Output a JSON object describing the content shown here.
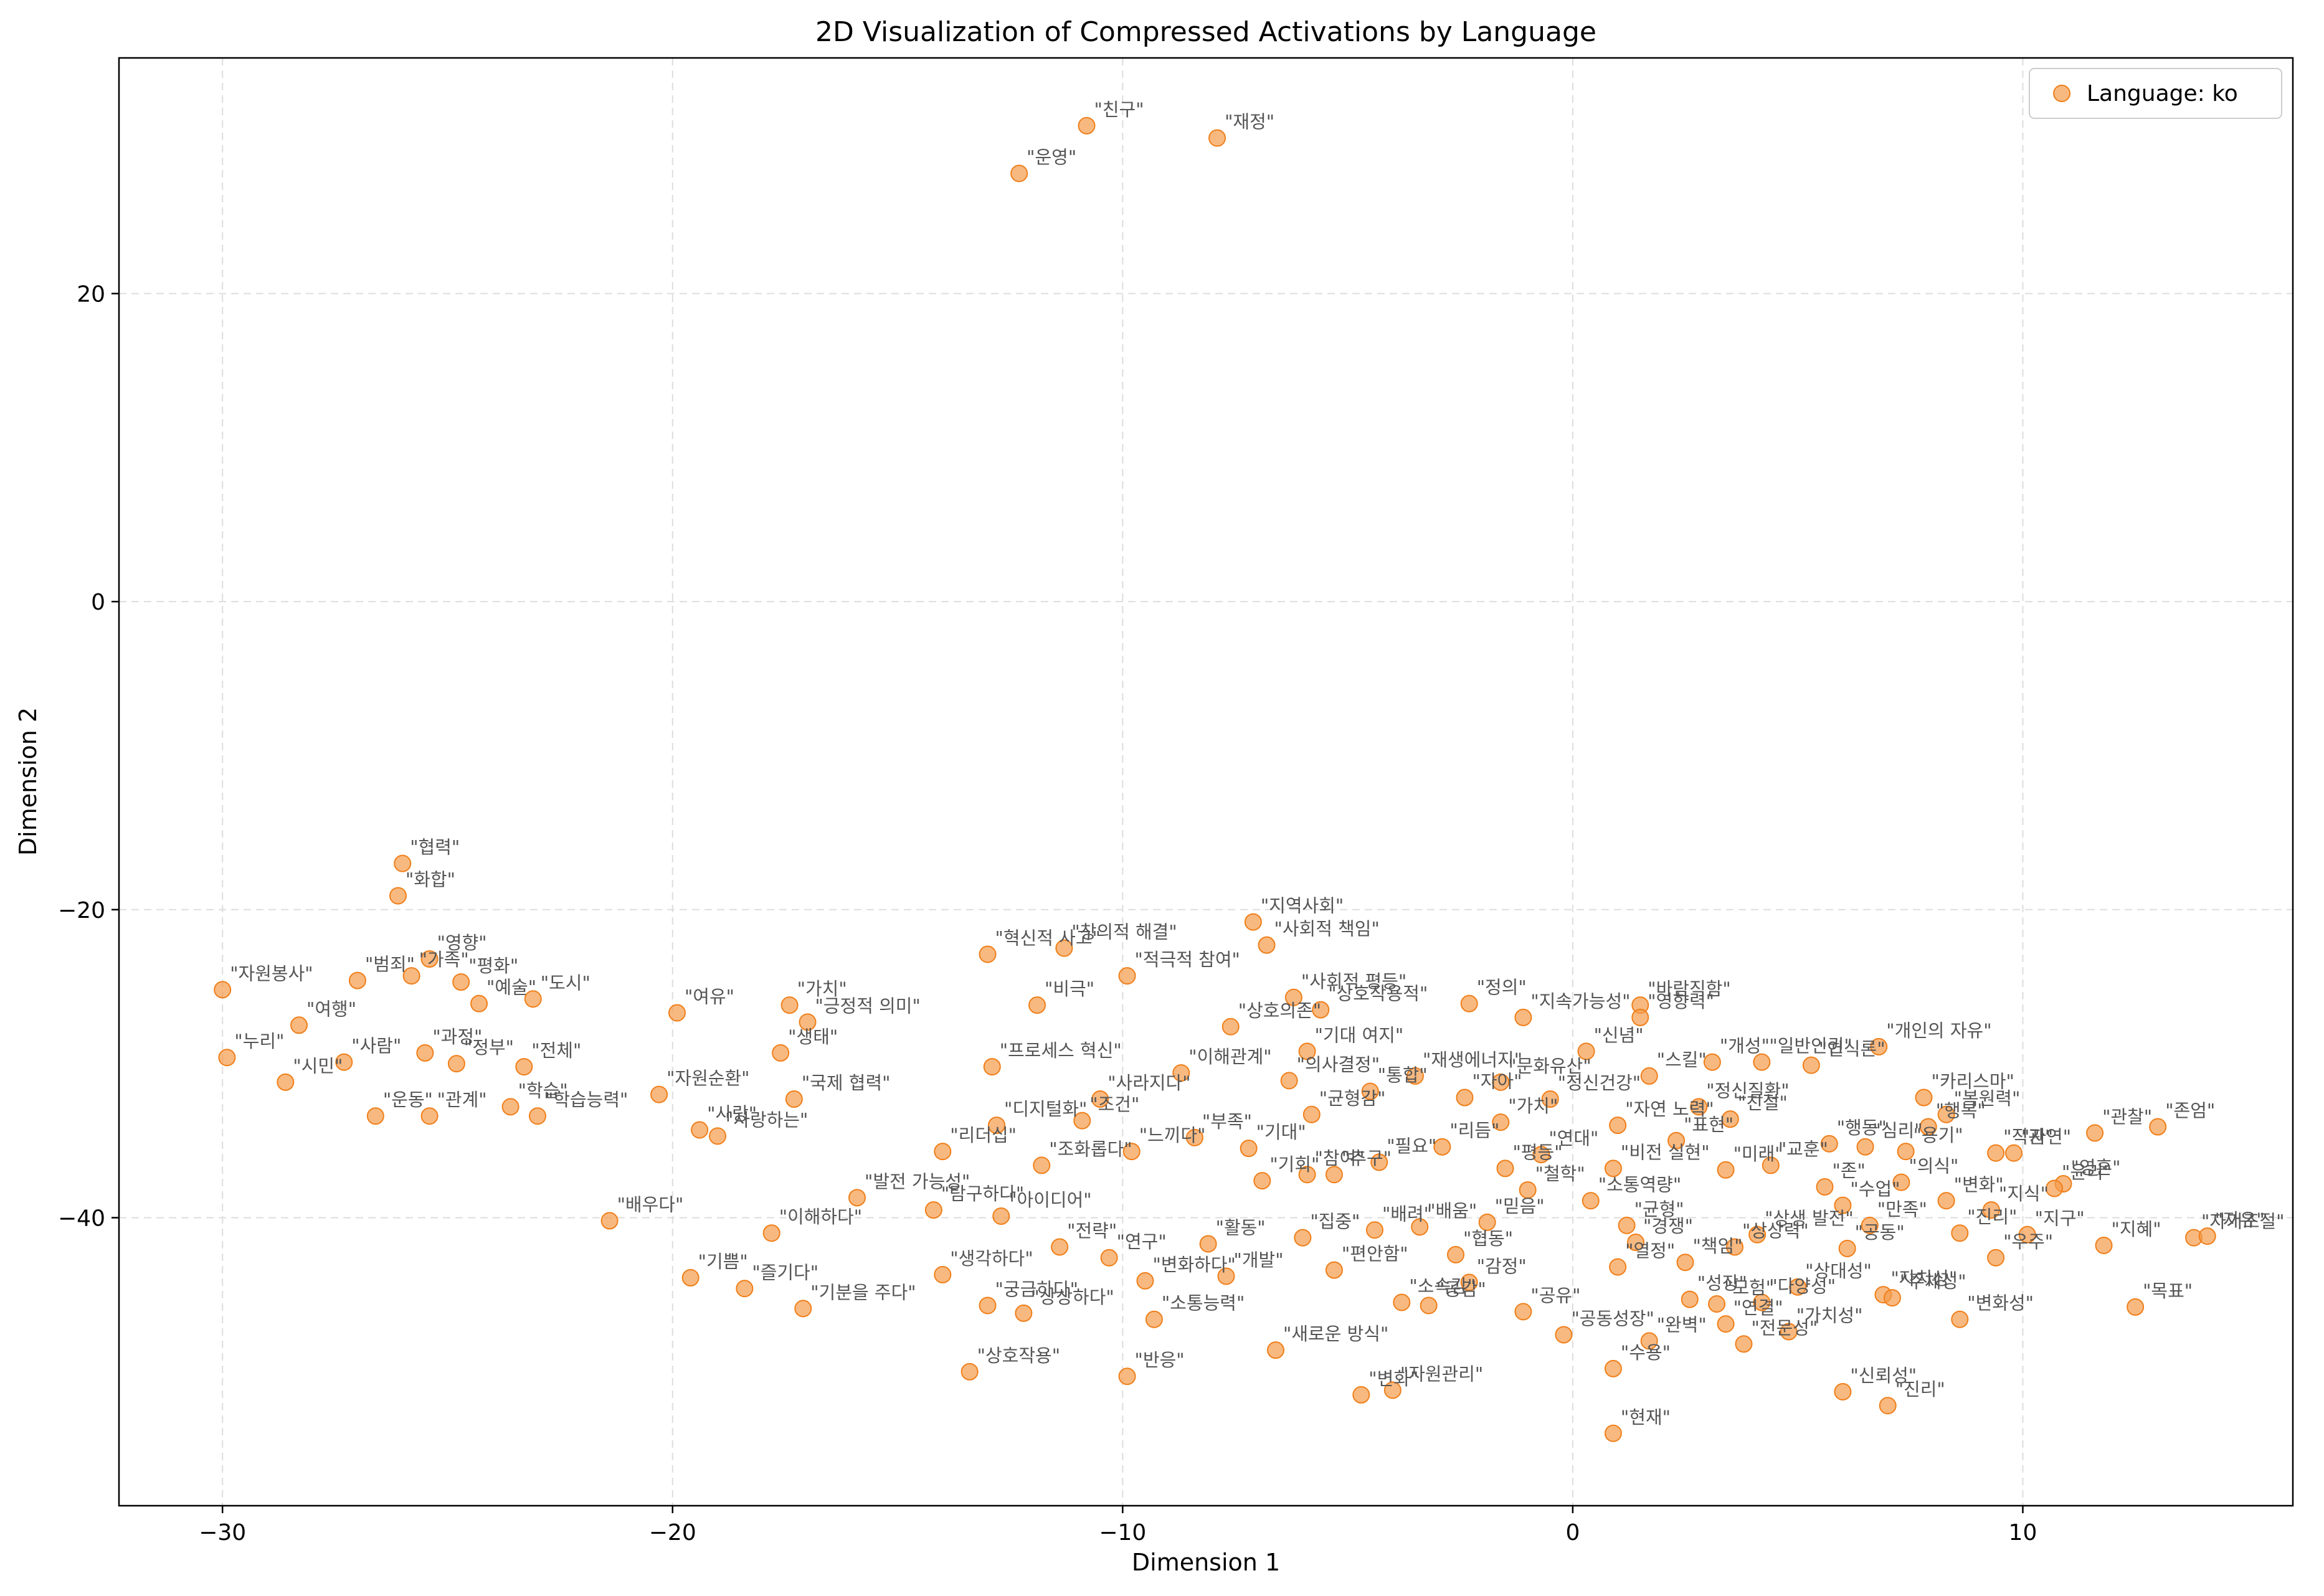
{
  "chart_data": {
    "type": "scatter",
    "title": "2D Visualization of Compressed Activations by Language",
    "xlabel": "Dimension 1",
    "ylabel": "Dimension 2",
    "xlim": [
      -32.3,
      16.0
    ],
    "ylim": [
      -58.7,
      35.3
    ],
    "xticks": [
      -30,
      -20,
      -10,
      0,
      10
    ],
    "xtick_labels": [
      "−30",
      "−20",
      "−10",
      "0",
      "10"
    ],
    "yticks": [
      20,
      0,
      -20,
      -40
    ],
    "ytick_labels": [
      "20",
      "0",
      "−20",
      "−40"
    ],
    "grid": true,
    "legend_position": "top-right",
    "colors": {
      "marker": "#f39b4a",
      "marker_edge": "#f07f1a",
      "text": "#555555"
    },
    "series": [
      {
        "name": "Language: ko",
        "points": [
          {
            "x": -10.8,
            "y": 30.9,
            "label": "\"친구\""
          },
          {
            "x": -7.9,
            "y": 30.1,
            "label": "\"재정\""
          },
          {
            "x": -12.3,
            "y": 27.8,
            "label": "\"운영\""
          },
          {
            "x": -26.0,
            "y": -17.0,
            "label": "\"협력\""
          },
          {
            "x": -26.1,
            "y": -19.1,
            "label": "\"화합\""
          },
          {
            "x": -30.0,
            "y": -25.2,
            "label": "\"자원봉사\""
          },
          {
            "x": -27.0,
            "y": -24.6,
            "label": "\"범죄\""
          },
          {
            "x": -25.4,
            "y": -23.2,
            "label": "\"영향\""
          },
          {
            "x": -25.8,
            "y": -24.3,
            "label": "\"가족\""
          },
          {
            "x": -24.7,
            "y": -24.7,
            "label": "\"평화\""
          },
          {
            "x": -28.3,
            "y": -27.5,
            "label": "\"여행\""
          },
          {
            "x": -29.9,
            "y": -29.6,
            "label": "\"누리\""
          },
          {
            "x": -27.3,
            "y": -29.9,
            "label": "\"사람\""
          },
          {
            "x": -28.6,
            "y": -31.2,
            "label": "\"시민\""
          },
          {
            "x": -25.5,
            "y": -29.3,
            "label": "\"과정\""
          },
          {
            "x": -24.8,
            "y": -30.0,
            "label": "\"정부\""
          },
          {
            "x": -23.3,
            "y": -30.2,
            "label": "\"전체\""
          },
          {
            "x": -26.6,
            "y": -33.4,
            "label": "\"운동\""
          },
          {
            "x": -25.4,
            "y": -33.4,
            "label": "\"관계\""
          },
          {
            "x": -23.0,
            "y": -33.4,
            "label": "\"학습능력\""
          },
          {
            "x": -23.6,
            "y": -32.8,
            "label": "\"학습\""
          },
          {
            "x": -23.1,
            "y": -25.8,
            "label": "\"도시\""
          },
          {
            "x": -24.3,
            "y": -26.1,
            "label": "\"예술\""
          },
          {
            "x": -19.9,
            "y": -26.7,
            "label": "\"여유\""
          },
          {
            "x": -17.4,
            "y": -26.2,
            "label": "\"가치\""
          },
          {
            "x": -17.6,
            "y": -29.3,
            "label": "\"생태\""
          },
          {
            "x": -17.0,
            "y": -27.3,
            "label": "\"긍정적 의미\""
          },
          {
            "x": -20.3,
            "y": -32.0,
            "label": "\"자원순환\""
          },
          {
            "x": -17.3,
            "y": -32.3,
            "label": "\"국제 협력\""
          },
          {
            "x": -19.4,
            "y": -34.3,
            "label": "\"사랑\""
          },
          {
            "x": -19.0,
            "y": -34.7,
            "label": "\"사랑하는\""
          },
          {
            "x": -21.4,
            "y": -40.2,
            "label": "\"배우다\""
          },
          {
            "x": -19.6,
            "y": -43.9,
            "label": "\"기쁨\""
          },
          {
            "x": -18.4,
            "y": -44.6,
            "label": "\"즐기다\""
          },
          {
            "x": -17.1,
            "y": -45.9,
            "label": "\"기분을 주다\""
          },
          {
            "x": -13.4,
            "y": -50.0,
            "label": "\"상호작용\""
          },
          {
            "x": -12.2,
            "y": -46.2,
            "label": "\"상상하다\""
          },
          {
            "x": -9.9,
            "y": -50.3,
            "label": "\"반응\""
          },
          {
            "x": -13.0,
            "y": -22.9,
            "label": "\"혁신적 사고\""
          },
          {
            "x": -11.3,
            "y": -22.5,
            "label": "\"창의적 해결\""
          },
          {
            "x": -11.9,
            "y": -26.2,
            "label": "\"비극\""
          },
          {
            "x": -7.1,
            "y": -20.8,
            "label": "\"지역사회\""
          },
          {
            "x": -6.8,
            "y": -22.3,
            "label": "\"사회적 책임\""
          },
          {
            "x": -9.9,
            "y": -24.3,
            "label": "\"적극적 참여\""
          },
          {
            "x": -6.2,
            "y": -25.7,
            "label": "\"사회적 평등\""
          },
          {
            "x": -12.9,
            "y": -30.2,
            "label": "\"프로세스 혁신\""
          },
          {
            "x": -10.5,
            "y": -32.3,
            "label": "\"사라지다\""
          },
          {
            "x": -12.8,
            "y": -34.0,
            "label": "\"디지털화\""
          },
          {
            "x": -7.6,
            "y": -27.6,
            "label": "\"상호의존\""
          },
          {
            "x": -5.9,
            "y": -29.2,
            "label": "\"기대 여지\""
          },
          {
            "x": -14.0,
            "y": -35.7,
            "label": "\"리더십\""
          },
          {
            "x": -11.8,
            "y": -36.6,
            "label": "\"조화롭다\""
          },
          {
            "x": -9.8,
            "y": -35.7,
            "label": "\"느끼다\""
          },
          {
            "x": -6.9,
            "y": -37.6,
            "label": "\"기회\""
          },
          {
            "x": -5.3,
            "y": -37.2,
            "label": "\"추구\""
          },
          {
            "x": -15.9,
            "y": -38.7,
            "label": "\"발전 가능성\""
          },
          {
            "x": -14.2,
            "y": -39.5,
            "label": "\"탐구하다\""
          },
          {
            "x": -12.7,
            "y": -39.9,
            "label": "\"아이디어\""
          },
          {
            "x": -17.8,
            "y": -41.0,
            "label": "\"이해하다\""
          },
          {
            "x": -14.0,
            "y": -43.7,
            "label": "\"생각하다\""
          },
          {
            "x": -13.0,
            "y": -45.7,
            "label": "\"궁금하다\""
          },
          {
            "x": -9.3,
            "y": -46.6,
            "label": "\"소통능력\""
          },
          {
            "x": -6.6,
            "y": -48.6,
            "label": "\"새로운 방식\""
          },
          {
            "x": -4.0,
            "y": -51.2,
            "label": "\"자원관리\""
          },
          {
            "x": -4.7,
            "y": -51.5,
            "label": "\"변화\""
          },
          {
            "x": -5.3,
            "y": -43.4,
            "label": "\"편안함\""
          },
          {
            "x": -4.4,
            "y": -40.8,
            "label": "\"배려\""
          },
          {
            "x": -3.4,
            "y": -40.6,
            "label": "\"배움\""
          },
          {
            "x": -1.9,
            "y": -40.3,
            "label": "\"믿음\""
          },
          {
            "x": -2.6,
            "y": -42.4,
            "label": "\"협동\""
          },
          {
            "x": -2.3,
            "y": -44.2,
            "label": "\"감정\""
          },
          {
            "x": -3.2,
            "y": -45.7,
            "label": "\"공감\""
          },
          {
            "x": -3.8,
            "y": -45.5,
            "label": "\"소속감\""
          },
          {
            "x": -1.1,
            "y": -46.1,
            "label": "\"공유\""
          },
          {
            "x": -0.2,
            "y": -47.6,
            "label": "\"공동성장\""
          },
          {
            "x": 0.9,
            "y": -49.8,
            "label": "\"수용\""
          },
          {
            "x": 0.9,
            "y": -54.0,
            "label": "\"현재\""
          },
          {
            "x": 1.7,
            "y": -48.0,
            "label": "\"완벽\""
          },
          {
            "x": 1.0,
            "y": -43.2,
            "label": "\"열정\""
          },
          {
            "x": 1.4,
            "y": -41.6,
            "label": "\"경쟁\""
          },
          {
            "x": 0.4,
            "y": -38.9,
            "label": "\"소통역량\""
          },
          {
            "x": -1.0,
            "y": -38.2,
            "label": "\"철학\""
          },
          {
            "x": -5.6,
            "y": -26.5,
            "label": "\"상호작용적\""
          },
          {
            "x": -2.3,
            "y": -26.1,
            "label": "\"정의\""
          },
          {
            "x": -1.1,
            "y": -27.0,
            "label": "\"지속가능성\""
          },
          {
            "x": 1.5,
            "y": -26.2,
            "label": "\"바람직함\""
          },
          {
            "x": 1.5,
            "y": -27.0,
            "label": "\"영향력\""
          },
          {
            "x": 0.3,
            "y": -29.2,
            "label": "\"신념\""
          },
          {
            "x": 1.7,
            "y": -30.8,
            "label": "\"스킬\""
          },
          {
            "x": -3.5,
            "y": -30.8,
            "label": "\"재생에너지\""
          },
          {
            "x": -1.6,
            "y": -31.2,
            "label": "\"문화유산\""
          },
          {
            "x": -0.5,
            "y": -32.3,
            "label": "\"정신건강\""
          },
          {
            "x": 2.8,
            "y": -32.8,
            "label": "\"정신질환\""
          },
          {
            "x": 3.1,
            "y": -29.9,
            "label": "\"개성\""
          },
          {
            "x": 4.2,
            "y": -29.9,
            "label": "\"일반인권\""
          },
          {
            "x": 5.3,
            "y": -30.1,
            "label": "\"인식론\""
          },
          {
            "x": 6.8,
            "y": -28.9,
            "label": "\"개인의 자유\""
          },
          {
            "x": 7.8,
            "y": -32.2,
            "label": "\"카리스마\""
          },
          {
            "x": 8.3,
            "y": -33.3,
            "label": "\"복원력\""
          },
          {
            "x": 7.9,
            "y": -34.1,
            "label": "\"행복\""
          },
          {
            "x": 11.6,
            "y": -34.5,
            "label": "\"관찰\""
          },
          {
            "x": 13.0,
            "y": -34.1,
            "label": "\"존엄\""
          },
          {
            "x": 9.4,
            "y": -35.8,
            "label": "\"직관\""
          },
          {
            "x": 9.8,
            "y": -35.8,
            "label": "\"자연\""
          },
          {
            "x": 10.9,
            "y": -37.8,
            "label": "\"영혼\""
          },
          {
            "x": 10.7,
            "y": -38.1,
            "label": "\"윤리\""
          },
          {
            "x": 13.8,
            "y": -41.3,
            "label": "\"자기조절\""
          },
          {
            "x": 14.1,
            "y": -41.2,
            "label": "\"자유\""
          },
          {
            "x": 11.8,
            "y": -41.8,
            "label": "\"지혜\""
          },
          {
            "x": 10.1,
            "y": -41.1,
            "label": "\"지구\""
          },
          {
            "x": 9.4,
            "y": -42.6,
            "label": "\"우주\""
          },
          {
            "x": 12.5,
            "y": -45.8,
            "label": "\"목표\""
          },
          {
            "x": 8.6,
            "y": -46.6,
            "label": "\"변화성\""
          },
          {
            "x": 6.9,
            "y": -45.0,
            "label": "\"자치성\""
          },
          {
            "x": 7.1,
            "y": -45.2,
            "label": "\"주체성\""
          },
          {
            "x": 6.0,
            "y": -51.3,
            "label": "\"신뢰성\""
          },
          {
            "x": 7.0,
            "y": -52.2,
            "label": "\"진리\""
          },
          {
            "x": 5.7,
            "y": -35.2,
            "label": "\"행동\""
          },
          {
            "x": 6.5,
            "y": -35.4,
            "label": "\"심리\""
          },
          {
            "x": 7.4,
            "y": -35.7,
            "label": "\"용기\""
          },
          {
            "x": 7.3,
            "y": -37.7,
            "label": "\"의식\""
          },
          {
            "x": 8.3,
            "y": -38.9,
            "label": "\"변화\""
          },
          {
            "x": 8.6,
            "y": -41.0,
            "label": "\"진리\""
          },
          {
            "x": 9.3,
            "y": -39.5,
            "label": "\"지식\""
          },
          {
            "x": 4.4,
            "y": -36.6,
            "label": "\"교훈\""
          },
          {
            "x": 3.4,
            "y": -36.9,
            "label": "\"미래\""
          },
          {
            "x": 5.6,
            "y": -38.0,
            "label": "\"존\""
          },
          {
            "x": 6.0,
            "y": -39.2,
            "label": "\"수업\""
          },
          {
            "x": 4.1,
            "y": -41.1,
            "label": "\"상생 발전\""
          },
          {
            "x": 3.6,
            "y": -41.9,
            "label": "\"상상력\""
          },
          {
            "x": 6.6,
            "y": -40.5,
            "label": "\"만족\""
          },
          {
            "x": 6.1,
            "y": -42.0,
            "label": "\"공동\""
          },
          {
            "x": 5.0,
            "y": -44.5,
            "label": "\"상대성\""
          },
          {
            "x": 4.2,
            "y": -45.5,
            "label": "\"다양성\""
          },
          {
            "x": 3.4,
            "y": -46.9,
            "label": "\"연결\""
          },
          {
            "x": 2.6,
            "y": -45.3,
            "label": "\"성장\""
          },
          {
            "x": 3.8,
            "y": -48.2,
            "label": "\"전문성\""
          },
          {
            "x": 4.8,
            "y": -47.4,
            "label": "\"가치성\""
          },
          {
            "x": 3.2,
            "y": -45.6,
            "label": "\"모험\""
          },
          {
            "x": 2.5,
            "y": -42.9,
            "label": "\"책임\""
          },
          {
            "x": 1.2,
            "y": -40.5,
            "label": "\"균형\""
          },
          {
            "x": 0.9,
            "y": -36.8,
            "label": "\"비전 실현\""
          },
          {
            "x": -2.4,
            "y": -32.2,
            "label": "\"자아\""
          },
          {
            "x": -1.6,
            "y": -33.8,
            "label": "\"가치\""
          },
          {
            "x": -0.7,
            "y": -35.9,
            "label": "\"연대\""
          },
          {
            "x": 1.0,
            "y": -34.0,
            "label": "\"자연 노력\""
          },
          {
            "x": 2.3,
            "y": -35.0,
            "label": "\"표현\""
          },
          {
            "x": 3.5,
            "y": -33.6,
            "label": "\"친절\""
          },
          {
            "x": -2.9,
            "y": -35.4,
            "label": "\"리듬\""
          },
          {
            "x": -1.5,
            "y": -36.8,
            "label": "\"평등\""
          },
          {
            "x": -4.3,
            "y": -36.4,
            "label": "\"필요\""
          },
          {
            "x": -7.2,
            "y": -35.5,
            "label": "\"기대\""
          },
          {
            "x": -8.4,
            "y": -34.8,
            "label": "\"부족\""
          },
          {
            "x": -5.8,
            "y": -33.3,
            "label": "\"균형감\""
          },
          {
            "x": -8.7,
            "y": -30.6,
            "label": "\"이해관계\""
          },
          {
            "x": -6.3,
            "y": -31.1,
            "label": "\"의사결정\""
          },
          {
            "x": -4.5,
            "y": -31.8,
            "label": "\"통합\""
          },
          {
            "x": -10.9,
            "y": -33.7,
            "label": "\"조건\""
          },
          {
            "x": -11.4,
            "y": -41.9,
            "label": "\"전략\""
          },
          {
            "x": -10.3,
            "y": -42.6,
            "label": "\"연구\""
          },
          {
            "x": -9.5,
            "y": -44.1,
            "label": "\"변화하다\""
          },
          {
            "x": -7.7,
            "y": -43.8,
            "label": "\"개발\""
          },
          {
            "x": -6.0,
            "y": -41.3,
            "label": "\"집중\""
          },
          {
            "x": -8.1,
            "y": -41.7,
            "label": "\"활동\""
          },
          {
            "x": -5.9,
            "y": -37.2,
            "label": "\"참여\""
          }
        ]
      }
    ]
  }
}
